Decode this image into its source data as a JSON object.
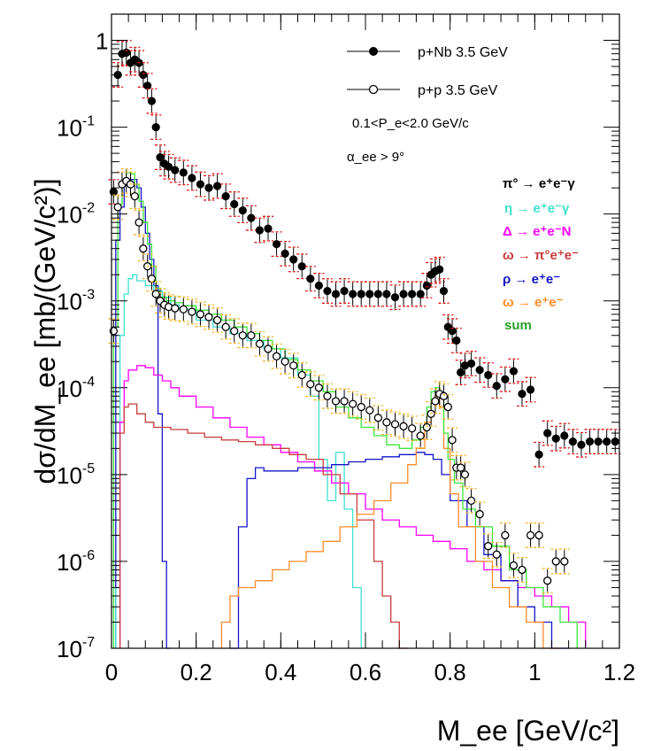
{
  "chart_data": {
    "type": "scatter",
    "ylabel": "dσ/dM_ee [mb/(GeV/c²)]",
    "xlabel": "M_ee [GeV/c²]",
    "xlim": [
      0,
      1.2
    ],
    "ylim": [
      1e-07,
      2
    ],
    "yscale": "log",
    "x_ticks": [
      {
        "v": 0,
        "label": "0"
      },
      {
        "v": 0.2,
        "label": "0.2"
      },
      {
        "v": 0.4,
        "label": "0.4"
      },
      {
        "v": 0.6,
        "label": "0.6"
      },
      {
        "v": 0.8,
        "label": "0.8"
      },
      {
        "v": 1.0,
        "label": "1"
      },
      {
        "v": 1.2,
        "label": "1.2"
      }
    ],
    "y_ticks": [
      {
        "v": 1,
        "base": "1",
        "exp": ""
      },
      {
        "v": 0.1,
        "base": "10",
        "exp": "-1"
      },
      {
        "v": 0.01,
        "base": "10",
        "exp": "-2"
      },
      {
        "v": 0.001,
        "base": "10",
        "exp": "-3"
      },
      {
        "v": 0.0001,
        "base": "10",
        "exp": "-4"
      },
      {
        "v": 1e-05,
        "base": "10",
        "exp": "-5"
      },
      {
        "v": 1e-06,
        "base": "10",
        "exp": "-6"
      },
      {
        "v": 1e-07,
        "base": "10",
        "exp": "-7"
      }
    ],
    "annotations": [
      "0.1<P_e<2.0 GeV/c",
      "α_ee > 9°"
    ],
    "legend_markers": [
      {
        "name": "p+Nb 3.5 GeV",
        "marker": "filled"
      },
      {
        "name": "p+p 3.5 GeV",
        "marker": "open"
      }
    ],
    "legend_channels": [
      {
        "name": "π° → e⁺e⁻γ",
        "color": "#000000"
      },
      {
        "name": "η → e⁺e⁻γ",
        "color": "#40e0d0"
      },
      {
        "name": "Δ → e⁺e⁻N",
        "color": "#ff00ff"
      },
      {
        "name": "ω → π°e⁺e⁻",
        "color": "#c83c3c"
      },
      {
        "name": "ρ → e⁺e⁻",
        "color": "#1414c8"
      },
      {
        "name": "ω → e⁺e⁻",
        "color": "#ff8c28"
      },
      {
        "name": "sum",
        "color": "#28a028"
      }
    ],
    "series": [
      {
        "name": "p+Nb 3.5 GeV",
        "marker": "filled",
        "color": "#000000",
        "x": [
          0.005,
          0.015,
          0.025,
          0.035,
          0.045,
          0.055,
          0.065,
          0.075,
          0.085,
          0.095,
          0.105,
          0.115,
          0.125,
          0.135,
          0.15,
          0.17,
          0.19,
          0.21,
          0.23,
          0.25,
          0.27,
          0.29,
          0.31,
          0.33,
          0.35,
          0.37,
          0.39,
          0.41,
          0.43,
          0.45,
          0.47,
          0.49,
          0.51,
          0.53,
          0.55,
          0.57,
          0.59,
          0.61,
          0.63,
          0.65,
          0.67,
          0.69,
          0.71,
          0.73,
          0.745,
          0.755,
          0.765,
          0.775,
          0.785,
          0.795,
          0.805,
          0.815,
          0.825,
          0.835,
          0.85,
          0.87,
          0.89,
          0.91,
          0.93,
          0.95,
          0.97,
          0.99,
          1.01,
          1.03,
          1.05,
          1.07,
          1.09,
          1.11,
          1.13,
          1.15,
          1.17,
          1.19
        ],
        "y": [
          0.018,
          0.4,
          0.7,
          0.72,
          0.55,
          0.6,
          0.55,
          0.4,
          0.3,
          0.2,
          0.1,
          0.045,
          0.038,
          0.035,
          0.032,
          0.03,
          0.026,
          0.022,
          0.02,
          0.021,
          0.016,
          0.013,
          0.011,
          0.009,
          0.0065,
          0.0068,
          0.0045,
          0.0035,
          0.003,
          0.0025,
          0.0018,
          0.0015,
          0.0013,
          0.0012,
          0.0013,
          0.0012,
          0.0012,
          0.0012,
          0.0012,
          0.0012,
          0.0011,
          0.0012,
          0.0012,
          0.0012,
          0.0015,
          0.002,
          0.0022,
          0.0023,
          0.0013,
          0.0005,
          0.00045,
          0.00035,
          0.00015,
          0.00018,
          0.00019,
          0.00016,
          0.00014,
          0.000105,
          0.000125,
          0.000155,
          8.5e-05,
          9.5e-05,
          1.7e-05,
          3e-05,
          2.6e-05,
          2.8e-05,
          2.4e-05,
          2.2e-05,
          2.4e-05,
          2.4e-05,
          2.4e-05,
          2.4e-05
        ]
      },
      {
        "name": "p+p 3.5 GeV",
        "marker": "open",
        "color": "#000000",
        "x": [
          0.005,
          0.015,
          0.025,
          0.035,
          0.045,
          0.055,
          0.065,
          0.075,
          0.085,
          0.095,
          0.105,
          0.115,
          0.125,
          0.135,
          0.15,
          0.17,
          0.19,
          0.21,
          0.23,
          0.25,
          0.27,
          0.29,
          0.31,
          0.33,
          0.35,
          0.37,
          0.39,
          0.41,
          0.43,
          0.45,
          0.47,
          0.49,
          0.51,
          0.53,
          0.55,
          0.57,
          0.59,
          0.61,
          0.63,
          0.65,
          0.67,
          0.69,
          0.71,
          0.73,
          0.745,
          0.755,
          0.765,
          0.775,
          0.785,
          0.795,
          0.805,
          0.815,
          0.825,
          0.835,
          0.85,
          0.87,
          0.89,
          0.91,
          0.93,
          0.95,
          0.97,
          0.99,
          1.01,
          1.03,
          1.05,
          1.07
        ],
        "y": [
          0.00045,
          0.012,
          0.022,
          0.024,
          0.022,
          0.016,
          0.008,
          0.004,
          0.0025,
          0.0018,
          0.0012,
          0.001,
          0.0009,
          0.00085,
          0.00082,
          0.0008,
          0.00075,
          0.0007,
          0.00065,
          0.0006,
          0.0005,
          0.00045,
          0.0004,
          0.0004,
          0.00032,
          0.00028,
          0.00023,
          0.0002,
          0.00018,
          0.00014,
          0.00011,
          0.0001,
          8e-05,
          7e-05,
          7e-05,
          6.5e-05,
          6e-05,
          5.5e-05,
          4.5e-05,
          4e-05,
          3.8e-05,
          3.6e-05,
          3.4e-05,
          2.8e-05,
          3.5e-05,
          5e-05,
          7e-05,
          8.5e-05,
          8e-05,
          6e-05,
          2.5e-05,
          1.2e-05,
          1.2e-05,
          1e-05,
          5e-06,
          3.5e-06,
          1.5e-06,
          1.2e-06,
          2e-06,
          9e-07,
          8e-07,
          2e-06,
          2e-06,
          6e-07,
          1e-06,
          1e-06
        ]
      }
    ],
    "histograms": [
      {
        "name": "π° → e⁺e⁻γ",
        "color": "#1414c8",
        "edges": [
          0.01,
          0.02,
          0.03,
          0.04,
          0.05,
          0.06,
          0.07,
          0.08,
          0.09,
          0.1,
          0.11,
          0.12,
          0.13,
          0.14
        ],
        "y": [
          0.005,
          0.012,
          0.022,
          0.025,
          0.025,
          0.02,
          0.012,
          0.006,
          0.003,
          0.0015,
          5e-05,
          1e-06,
          1e-07
        ]
      },
      {
        "name": "η → e⁺e⁻γ",
        "color": "#40e0d0",
        "edges": [
          0.01,
          0.02,
          0.03,
          0.04,
          0.05,
          0.06,
          0.08,
          0.1,
          0.12,
          0.14,
          0.16,
          0.2,
          0.24,
          0.28,
          0.32,
          0.36,
          0.4,
          0.44,
          0.47,
          0.49,
          0.51,
          0.53,
          0.55,
          0.57,
          0.59
        ],
        "y": [
          5e-07,
          0.0004,
          0.0012,
          0.0018,
          0.002,
          0.0017,
          0.0015,
          0.0013,
          0.0011,
          0.0009,
          0.0008,
          0.0006,
          0.0005,
          0.00042,
          0.00035,
          0.00028,
          0.00022,
          0.00014,
          8e-05,
          1.5e-05,
          5e-06,
          1.8e-05,
          4e-06,
          5e-07
        ]
      },
      {
        "name": "Δ → e⁺e⁻N",
        "color": "#ff00ff",
        "edges": [
          0.02,
          0.03,
          0.04,
          0.06,
          0.08,
          0.1,
          0.12,
          0.14,
          0.16,
          0.2,
          0.24,
          0.28,
          0.32,
          0.36,
          0.4,
          0.44,
          0.48,
          0.52,
          0.56,
          0.6,
          0.64,
          0.68,
          0.72,
          0.76,
          0.8,
          0.84,
          0.88,
          0.92,
          0.96,
          1.0,
          1.04,
          1.08,
          1.12
        ],
        "y": [
          4e-05,
          0.00012,
          0.00016,
          0.00018,
          0.00017,
          0.00014,
          0.00012,
          0.0001,
          8e-05,
          6e-05,
          4.5e-05,
          3.5e-05,
          2.7e-05,
          2.2e-05,
          1.8e-05,
          1.4e-05,
          1.1e-05,
          8e-06,
          6e-06,
          4e-06,
          3e-06,
          2.5e-06,
          2e-06,
          1.7e-06,
          1.4e-06,
          1e-06,
          8e-07,
          6e-07,
          5e-07,
          4e-07,
          3e-07,
          2e-07
        ]
      },
      {
        "name": "ω → π°e⁺e⁻",
        "color": "#c83c3c",
        "edges": [
          0.02,
          0.03,
          0.04,
          0.06,
          0.08,
          0.1,
          0.14,
          0.18,
          0.22,
          0.26,
          0.3,
          0.34,
          0.38,
          0.42,
          0.46,
          0.5,
          0.54,
          0.58,
          0.62,
          0.64,
          0.66,
          0.68,
          0.7
        ],
        "y": [
          3e-05,
          6e-05,
          6.5e-05,
          5e-05,
          4e-05,
          3.5e-05,
          3.3e-05,
          3e-05,
          2.7e-05,
          2.5e-05,
          2.4e-05,
          2.2e-05,
          2e-05,
          1.7e-05,
          1.5e-05,
          1e-05,
          6e-06,
          3e-06,
          1e-06,
          4e-07,
          2e-07,
          1e-07
        ]
      },
      {
        "name": "ρ → e⁺e⁻",
        "color": "#1414c8",
        "edges": [
          0.28,
          0.3,
          0.32,
          0.34,
          0.36,
          0.4,
          0.44,
          0.48,
          0.52,
          0.56,
          0.6,
          0.64,
          0.68,
          0.72,
          0.74,
          0.76,
          0.78,
          0.8,
          0.84,
          0.88,
          0.92,
          0.96,
          1.0,
          1.04,
          1.08
        ],
        "y": [
          1e-07,
          2.5e-06,
          9e-06,
          1.2e-05,
          1.1e-05,
          1.1e-05,
          1.2e-05,
          1.2e-05,
          1.3e-05,
          1.4e-05,
          1.5e-05,
          1.6e-05,
          1.7e-05,
          1.8e-05,
          1.7e-05,
          1.5e-05,
          1e-05,
          5e-06,
          2.5e-06,
          1.2e-06,
          6e-07,
          3e-07,
          2e-07,
          1e-07
        ]
      },
      {
        "name": "ω → e⁺e⁻",
        "color": "#ff8c28",
        "edges": [
          0.26,
          0.28,
          0.3,
          0.34,
          0.38,
          0.42,
          0.46,
          0.5,
          0.54,
          0.58,
          0.62,
          0.66,
          0.7,
          0.72,
          0.74,
          0.755,
          0.765,
          0.775,
          0.785,
          0.8,
          0.82,
          0.86,
          0.9,
          0.94,
          0.98,
          1.02,
          1.06
        ],
        "y": [
          2e-07,
          4e-07,
          5e-07,
          6e-07,
          8e-07,
          1e-06,
          1.3e-06,
          1.7e-06,
          2.5e-06,
          3.5e-06,
          5e-06,
          8e-06,
          1.3e-05,
          2e-05,
          4e-05,
          7e-05,
          8e-05,
          6e-05,
          2e-05,
          6e-06,
          2.5e-06,
          1e-06,
          5e-07,
          3e-07,
          2e-07,
          1e-07
        ]
      },
      {
        "name": "sum",
        "color": "#3ce63c",
        "edges": [
          0.005,
          0.015,
          0.025,
          0.035,
          0.045,
          0.055,
          0.065,
          0.075,
          0.085,
          0.095,
          0.105,
          0.115,
          0.13,
          0.15,
          0.17,
          0.2,
          0.23,
          0.26,
          0.29,
          0.32,
          0.35,
          0.38,
          0.41,
          0.44,
          0.47,
          0.5,
          0.53,
          0.56,
          0.59,
          0.62,
          0.65,
          0.68,
          0.71,
          0.73,
          0.745,
          0.755,
          0.765,
          0.775,
          0.785,
          0.795,
          0.81,
          0.83,
          0.86,
          0.9,
          0.94,
          0.98,
          1.02,
          1.06,
          1.1
        ],
        "y": [
          0.0005,
          0.013,
          0.024,
          0.03,
          0.029,
          0.022,
          0.014,
          0.008,
          0.0045,
          0.0025,
          0.0014,
          0.0011,
          0.001,
          0.00095,
          0.00088,
          0.00078,
          0.0007,
          0.0006,
          0.0005,
          0.00042,
          0.00035,
          0.00028,
          0.00021,
          0.00016,
          0.00012,
          9e-05,
          6e-05,
          4.5e-05,
          3.5e-05,
          2.8e-05,
          2.2e-05,
          2e-05,
          2.5e-05,
          3.5e-05,
          6e-05,
          9e-05,
          0.0001,
          8e-05,
          3e-05,
          1.5e-05,
          8e-06,
          4e-06,
          2.5e-06,
          1.5e-06,
          8e-07,
          5e-07,
          3e-07,
          2e-07
        ]
      }
    ]
  }
}
